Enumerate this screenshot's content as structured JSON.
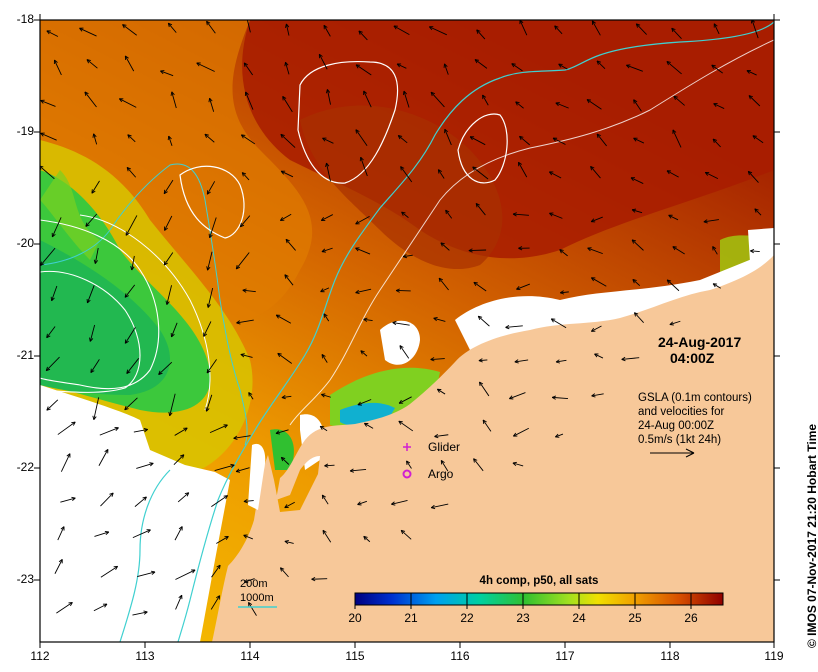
{
  "y_ticks": [
    "-18",
    "-19",
    "-20",
    "-21",
    "-22",
    "-23"
  ],
  "x_ticks": [
    "112",
    "113",
    "114",
    "115",
    "116",
    "117",
    "118",
    "119"
  ],
  "date_title": {
    "line1": "24-Aug-2017",
    "line2": "04:00Z"
  },
  "velocity_note": [
    "GSLA (0.1m contours)",
    "and velocities for",
    "24-Aug 00:00Z",
    "0.5m/s (1kt 24h)"
  ],
  "platform_legend": {
    "glider": "Glider",
    "argo": "Argo"
  },
  "depth_legend": {
    "d200": "200m",
    "d1000": "1000m"
  },
  "colorbar": {
    "title": "4h comp, p50, all sats",
    "ticks": [
      "20",
      "21",
      "22",
      "23",
      "24",
      "25",
      "26"
    ]
  },
  "credit": "© IMOS 07-Nov-2017 21:20 Hobart Time",
  "colors": {
    "land": "#f7c899",
    "isobath_200": "#ffffff",
    "isobath_1000": "#40d0d0",
    "gsla_contour": "#ffffff",
    "glider": "#d020d0",
    "argo": "#d020d0"
  }
}
